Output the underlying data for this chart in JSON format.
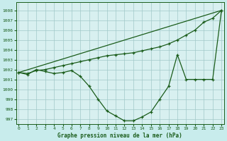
{
  "title": "Graphe pression niveau de la mer (hPa)",
  "background_color": "#c8ecec",
  "plot_bg_color": "#d8f0f0",
  "grid_color": "#a0c8c8",
  "line_color": "#1a5c1a",
  "ylim": [
    996.5,
    1008.8
  ],
  "xlim": [
    -0.3,
    23.3
  ],
  "yticks": [
    997,
    998,
    999,
    1000,
    1001,
    1002,
    1003,
    1004,
    1005,
    1006,
    1007,
    1008
  ],
  "xticks": [
    0,
    1,
    2,
    3,
    4,
    5,
    6,
    7,
    8,
    9,
    10,
    11,
    12,
    13,
    14,
    15,
    16,
    17,
    18,
    19,
    20,
    21,
    22,
    23
  ],
  "series_straight": {
    "x": [
      0,
      23
    ],
    "y": [
      1001.7,
      1008.0
    ]
  },
  "series_gradual": {
    "x": [
      0,
      1,
      2,
      3,
      4,
      5,
      6,
      7,
      8,
      9,
      10,
      11,
      12,
      13,
      14,
      15,
      16,
      17,
      18,
      19,
      20,
      21,
      22,
      23
    ],
    "y": [
      1001.7,
      1001.6,
      1001.9,
      1002.0,
      1002.2,
      1002.4,
      1002.6,
      1002.8,
      1003.0,
      1003.2,
      1003.4,
      1003.5,
      1003.6,
      1003.7,
      1003.9,
      1004.1,
      1004.3,
      1004.6,
      1005.0,
      1005.5,
      1006.0,
      1006.8,
      1007.2,
      1008.0
    ]
  },
  "series_dip": {
    "x": [
      0,
      1,
      2,
      3,
      4,
      5,
      6,
      7,
      8,
      9,
      10,
      11,
      12,
      13,
      14,
      15,
      16,
      17,
      18,
      19,
      20,
      21,
      22,
      23
    ],
    "y": [
      1001.7,
      1001.5,
      1002.0,
      1001.8,
      1001.6,
      1001.7,
      1001.9,
      1001.3,
      1000.3,
      999.0,
      997.8,
      997.3,
      996.8,
      996.8,
      997.2,
      997.7,
      999.0,
      1000.3,
      1003.5,
      1001.0,
      1001.0,
      1001.0,
      1001.0,
      1008.0
    ]
  }
}
